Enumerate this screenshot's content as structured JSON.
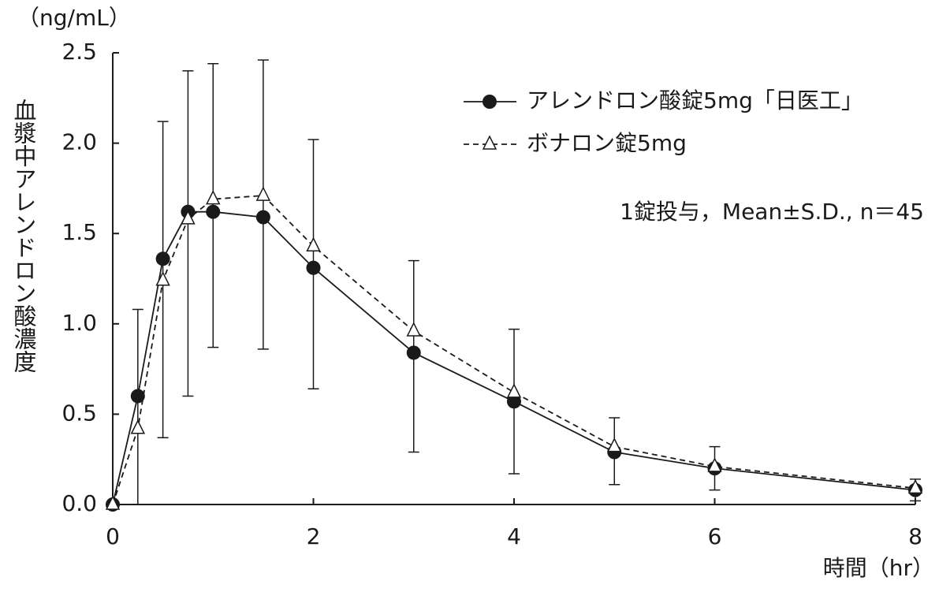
{
  "chart_data": {
    "type": "line",
    "y_unit": "（ng/mL）",
    "ylabel": "血漿中アレンドロン酸濃度",
    "xlabel": "時間（hr）",
    "annotation": "1錠投与，Mean±S.D., n＝45",
    "x": [
      0,
      0.25,
      0.5,
      0.75,
      1,
      1.5,
      2,
      3,
      4,
      5,
      6,
      8
    ],
    "series": [
      {
        "name": "アレンドロン酸錠5mg「日医工」",
        "color": "#1a1a1a",
        "marker": "circle",
        "dash": false,
        "values": [
          0,
          0.6,
          1.36,
          1.62,
          1.62,
          1.59,
          1.31,
          0.84,
          0.57,
          0.29,
          0.2,
          0.08
        ],
        "upper": [
          null,
          1.08,
          2.12,
          2.4,
          2.44,
          2.46,
          2.02,
          1.35,
          0.97,
          0.48,
          0.32,
          0.14
        ],
        "lower": [
          null,
          0,
          0.37,
          0.6,
          0.87,
          0.86,
          0.64,
          0.29,
          0.17,
          0.11,
          0.08,
          0.02
        ]
      },
      {
        "name": "ボナロン錠5mg",
        "color": "#1a1a1a",
        "marker": "triangle",
        "dash": true,
        "values": [
          0,
          0.42,
          1.24,
          1.58,
          1.69,
          1.71,
          1.43,
          0.96,
          0.62,
          0.32,
          0.21,
          0.09
        ]
      }
    ],
    "xlim": [
      0,
      8
    ],
    "xticks": [
      0,
      2,
      4,
      6,
      8
    ],
    "ylim": [
      0,
      2.5
    ],
    "yticks": [
      {
        "value": 0,
        "label": "0.0"
      },
      0.5,
      {
        "value": 1,
        "label": "1.0"
      },
      1.5,
      {
        "value": 2,
        "label": "2.0"
      },
      2.5
    ],
    "legend": "top-right"
  }
}
